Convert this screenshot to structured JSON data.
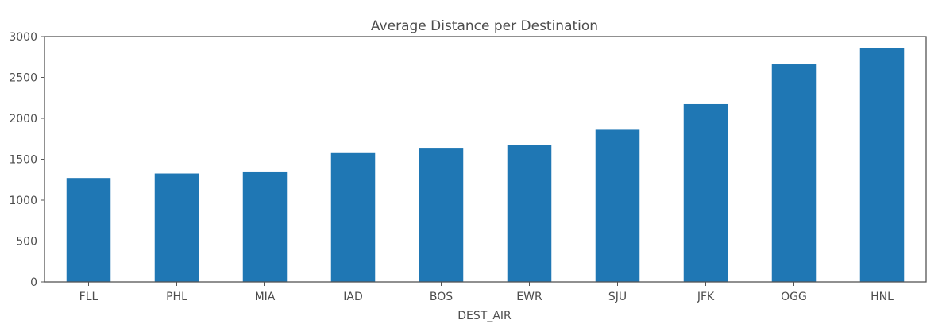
{
  "chart_data": {
    "type": "bar",
    "title": "Average Distance per Destination",
    "xlabel": "DEST_AIR",
    "ylabel": "",
    "categories": [
      "FLL",
      "PHL",
      "MIA",
      "IAD",
      "BOS",
      "EWR",
      "SJU",
      "JFK",
      "OGG",
      "HNL"
    ],
    "values": [
      1270,
      1325,
      1350,
      1575,
      1640,
      1670,
      1860,
      2175,
      2660,
      2855
    ],
    "ylim": [
      0,
      3000
    ],
    "yticks": [
      0,
      500,
      1000,
      1500,
      2000,
      2500,
      3000
    ],
    "grid": false,
    "legend": "none",
    "bar_color": "#1f77b4"
  }
}
